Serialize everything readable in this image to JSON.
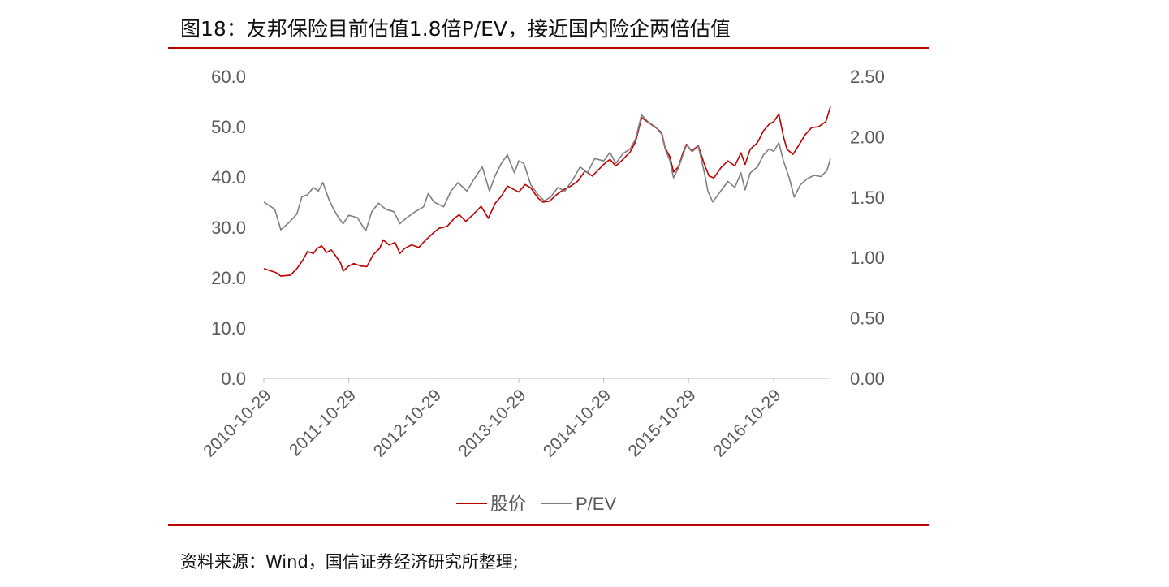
{
  "title": "图18：友邦保险目前估值1.8倍P/EV，接近国内险企两倍估值",
  "source": "资料来源：Wind，国信证券经济研究所整理;",
  "chart_data": {
    "type": "line",
    "title": "图18：友邦保险目前估值1.8倍P/EV，接近国内险企两倍估值",
    "xlabel": "",
    "ylabel_left": "",
    "ylabel_right": "",
    "x_ticks": [
      "2010-10-29",
      "2011-10-29",
      "2012-10-29",
      "2013-10-29",
      "2014-10-29",
      "2015-10-29",
      "2016-10-29"
    ],
    "x_range": [
      "2010-10-29",
      "2017-06-30"
    ],
    "y_left": {
      "min": 0,
      "max": 60,
      "ticks": [
        "0.0",
        "10.0",
        "20.0",
        "30.0",
        "40.0",
        "50.0",
        "60.0"
      ]
    },
    "y_right": {
      "min": 0,
      "max": 2.5,
      "ticks": [
        "0.00",
        "0.50",
        "1.00",
        "1.50",
        "2.00",
        "2.50"
      ]
    },
    "grid": false,
    "legend_position": "bottom",
    "series": [
      {
        "name": "股价",
        "axis": "left",
        "color": "#c00000",
        "points": [
          [
            "2010-10-29",
            21.8
          ],
          [
            "2010-12-20",
            21.0
          ],
          [
            "2011-01-10",
            20.3
          ],
          [
            "2011-02-20",
            20.5
          ],
          [
            "2011-03-20",
            21.8
          ],
          [
            "2011-04-15",
            23.5
          ],
          [
            "2011-05-05",
            25.2
          ],
          [
            "2011-05-30",
            24.8
          ],
          [
            "2011-06-15",
            25.8
          ],
          [
            "2011-07-05",
            26.3
          ],
          [
            "2011-07-25",
            25.0
          ],
          [
            "2011-08-15",
            25.5
          ],
          [
            "2011-09-05",
            24.2
          ],
          [
            "2011-09-25",
            22.8
          ],
          [
            "2011-10-05",
            21.3
          ],
          [
            "2011-10-29",
            22.3
          ],
          [
            "2011-11-20",
            22.8
          ],
          [
            "2011-12-20",
            22.3
          ],
          [
            "2012-01-15",
            22.2
          ],
          [
            "2012-02-10",
            24.5
          ],
          [
            "2012-03-10",
            25.8
          ],
          [
            "2012-03-25",
            27.5
          ],
          [
            "2012-04-20",
            26.5
          ],
          [
            "2012-05-15",
            27.0
          ],
          [
            "2012-06-05",
            24.8
          ],
          [
            "2012-06-25",
            25.8
          ],
          [
            "2012-07-25",
            26.5
          ],
          [
            "2012-08-25",
            26.0
          ],
          [
            "2012-09-20",
            27.3
          ],
          [
            "2012-10-29",
            29.0
          ],
          [
            "2012-11-20",
            29.8
          ],
          [
            "2012-12-25",
            30.2
          ],
          [
            "2013-01-25",
            31.8
          ],
          [
            "2013-02-15",
            32.5
          ],
          [
            "2013-03-15",
            31.2
          ],
          [
            "2013-04-15",
            32.5
          ],
          [
            "2013-05-20",
            34.2
          ],
          [
            "2013-06-20",
            31.8
          ],
          [
            "2013-07-20",
            34.8
          ],
          [
            "2013-08-15",
            36.2
          ],
          [
            "2013-09-10",
            38.2
          ],
          [
            "2013-10-29",
            37.0
          ],
          [
            "2013-11-25",
            38.5
          ],
          [
            "2013-12-20",
            37.8
          ],
          [
            "2014-01-20",
            35.8
          ],
          [
            "2014-02-10",
            35.0
          ],
          [
            "2014-03-10",
            35.2
          ],
          [
            "2014-04-10",
            36.5
          ],
          [
            "2014-05-10",
            37.5
          ],
          [
            "2014-06-10",
            38.2
          ],
          [
            "2014-07-10",
            39.2
          ],
          [
            "2014-08-10",
            41.2
          ],
          [
            "2014-09-10",
            40.2
          ],
          [
            "2014-10-29",
            42.5
          ],
          [
            "2014-11-25",
            43.5
          ],
          [
            "2014-12-20",
            42.2
          ],
          [
            "2015-01-20",
            43.5
          ],
          [
            "2015-02-20",
            45.0
          ],
          [
            "2015-03-15",
            47.0
          ],
          [
            "2015-04-10",
            51.8
          ],
          [
            "2015-05-10",
            50.8
          ],
          [
            "2015-06-10",
            49.8
          ],
          [
            "2015-07-05",
            48.8
          ],
          [
            "2015-07-20",
            45.8
          ],
          [
            "2015-08-10",
            44.0
          ],
          [
            "2015-08-25",
            41.0
          ],
          [
            "2015-09-15",
            42.0
          ],
          [
            "2015-10-05",
            44.8
          ],
          [
            "2015-10-20",
            46.5
          ],
          [
            "2015-11-10",
            45.2
          ],
          [
            "2015-12-10",
            46.2
          ],
          [
            "2016-01-05",
            42.5
          ],
          [
            "2016-01-25",
            40.2
          ],
          [
            "2016-02-15",
            39.8
          ],
          [
            "2016-03-15",
            41.8
          ],
          [
            "2016-04-15",
            43.2
          ],
          [
            "2016-05-15",
            42.2
          ],
          [
            "2016-06-10",
            44.8
          ],
          [
            "2016-06-28",
            42.5
          ],
          [
            "2016-07-20",
            45.5
          ],
          [
            "2016-08-20",
            46.8
          ],
          [
            "2016-09-15",
            49.2
          ],
          [
            "2016-10-10",
            50.5
          ],
          [
            "2016-10-29",
            51.0
          ],
          [
            "2016-11-20",
            52.5
          ],
          [
            "2016-12-10",
            48.0
          ],
          [
            "2016-12-25",
            45.5
          ],
          [
            "2017-01-20",
            44.5
          ],
          [
            "2017-02-20",
            46.8
          ],
          [
            "2017-03-15",
            48.5
          ],
          [
            "2017-04-10",
            49.8
          ],
          [
            "2017-05-10",
            50.0
          ],
          [
            "2017-06-10",
            51.0
          ],
          [
            "2017-06-30",
            54.0
          ]
        ]
      },
      {
        "name": "P/EV",
        "axis": "right",
        "color": "#7f7f7f",
        "points": [
          [
            "2010-10-29",
            1.46
          ],
          [
            "2010-12-15",
            1.4
          ],
          [
            "2011-01-10",
            1.23
          ],
          [
            "2011-02-15",
            1.29
          ],
          [
            "2011-03-20",
            1.36
          ],
          [
            "2011-04-10",
            1.5
          ],
          [
            "2011-05-05",
            1.52
          ],
          [
            "2011-05-30",
            1.58
          ],
          [
            "2011-06-20",
            1.55
          ],
          [
            "2011-07-10",
            1.62
          ],
          [
            "2011-08-05",
            1.48
          ],
          [
            "2011-08-25",
            1.4
          ],
          [
            "2011-09-15",
            1.33
          ],
          [
            "2011-10-05",
            1.28
          ],
          [
            "2011-10-29",
            1.35
          ],
          [
            "2011-12-05",
            1.33
          ],
          [
            "2012-01-10",
            1.22
          ],
          [
            "2012-02-05",
            1.38
          ],
          [
            "2012-03-05",
            1.45
          ],
          [
            "2012-04-05",
            1.4
          ],
          [
            "2012-05-10",
            1.38
          ],
          [
            "2012-06-05",
            1.28
          ],
          [
            "2012-07-05",
            1.33
          ],
          [
            "2012-08-10",
            1.38
          ],
          [
            "2012-09-15",
            1.42
          ],
          [
            "2012-10-05",
            1.53
          ],
          [
            "2012-10-29",
            1.46
          ],
          [
            "2012-12-10",
            1.42
          ],
          [
            "2013-01-10",
            1.55
          ],
          [
            "2013-02-10",
            1.62
          ],
          [
            "2013-03-20",
            1.55
          ],
          [
            "2013-04-20",
            1.65
          ],
          [
            "2013-05-25",
            1.75
          ],
          [
            "2013-06-25",
            1.55
          ],
          [
            "2013-07-20",
            1.68
          ],
          [
            "2013-08-15",
            1.78
          ],
          [
            "2013-09-10",
            1.85
          ],
          [
            "2013-10-10",
            1.7
          ],
          [
            "2013-10-29",
            1.8
          ],
          [
            "2013-11-20",
            1.78
          ],
          [
            "2013-12-20",
            1.6
          ],
          [
            "2014-01-20",
            1.52
          ],
          [
            "2014-02-15",
            1.47
          ],
          [
            "2014-03-15",
            1.5
          ],
          [
            "2014-04-15",
            1.58
          ],
          [
            "2014-05-15",
            1.55
          ],
          [
            "2014-06-20",
            1.65
          ],
          [
            "2014-07-20",
            1.75
          ],
          [
            "2014-08-20",
            1.7
          ],
          [
            "2014-09-20",
            1.82
          ],
          [
            "2014-10-29",
            1.8
          ],
          [
            "2014-11-25",
            1.87
          ],
          [
            "2014-12-20",
            1.78
          ],
          [
            "2015-01-20",
            1.86
          ],
          [
            "2015-02-20",
            1.9
          ],
          [
            "2015-03-15",
            1.98
          ],
          [
            "2015-04-10",
            2.18
          ],
          [
            "2015-05-10",
            2.12
          ],
          [
            "2015-06-10",
            2.08
          ],
          [
            "2015-07-05",
            2.02
          ],
          [
            "2015-07-20",
            1.9
          ],
          [
            "2015-08-10",
            1.8
          ],
          [
            "2015-08-25",
            1.66
          ],
          [
            "2015-09-15",
            1.74
          ],
          [
            "2015-10-05",
            1.85
          ],
          [
            "2015-10-20",
            1.93
          ],
          [
            "2015-11-15",
            1.88
          ],
          [
            "2015-12-10",
            1.92
          ],
          [
            "2016-01-05",
            1.7
          ],
          [
            "2016-01-20",
            1.55
          ],
          [
            "2016-02-10",
            1.46
          ],
          [
            "2016-03-15",
            1.55
          ],
          [
            "2016-04-15",
            1.63
          ],
          [
            "2016-05-15",
            1.58
          ],
          [
            "2016-06-10",
            1.7
          ],
          [
            "2016-06-28",
            1.56
          ],
          [
            "2016-07-20",
            1.7
          ],
          [
            "2016-08-20",
            1.75
          ],
          [
            "2016-09-15",
            1.85
          ],
          [
            "2016-10-10",
            1.9
          ],
          [
            "2016-10-29",
            1.88
          ],
          [
            "2016-11-20",
            1.95
          ],
          [
            "2016-12-10",
            1.8
          ],
          [
            "2017-01-05",
            1.65
          ],
          [
            "2017-01-25",
            1.5
          ],
          [
            "2017-02-20",
            1.6
          ],
          [
            "2017-03-20",
            1.65
          ],
          [
            "2017-04-20",
            1.68
          ],
          [
            "2017-05-20",
            1.67
          ],
          [
            "2017-06-15",
            1.72
          ],
          [
            "2017-06-30",
            1.82
          ]
        ]
      }
    ]
  }
}
